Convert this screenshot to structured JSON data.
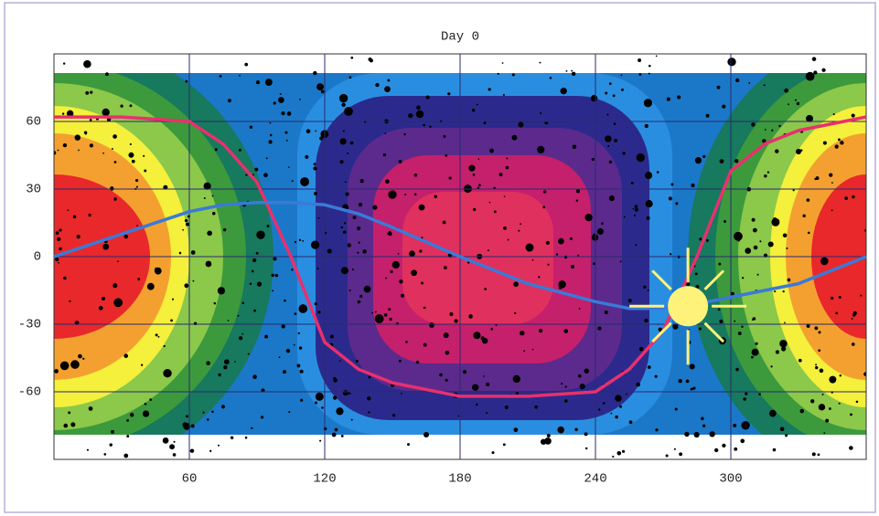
{
  "chart_data": {
    "type": "line",
    "title": "Day 0",
    "x": [
      0,
      30,
      60,
      75,
      90,
      105,
      120,
      135,
      150,
      180,
      210,
      240,
      255,
      270,
      285,
      300,
      315,
      330,
      360
    ],
    "series": [
      {
        "color": "#e8306e",
        "values": [
          62,
          62,
          60,
          50,
          33,
          0,
          -38,
          -50,
          -56,
          -62,
          -62,
          -60,
          -50,
          -33,
          0,
          38,
          50,
          56,
          62
        ]
      },
      {
        "color": "#3a7ad8",
        "values": [
          0,
          10,
          20,
          23,
          24,
          24,
          23,
          19,
          13,
          0,
          -12,
          -20,
          -23,
          -23,
          -21,
          -18,
          -15,
          -12,
          0
        ]
      }
    ],
    "sun": {
      "x": 281,
      "y": -22,
      "color": "#fff27a"
    },
    "xlim": [
      0,
      360
    ],
    "ylim": [
      -90,
      90
    ],
    "xticks": [
      60,
      120,
      180,
      240,
      300
    ],
    "yticks": [
      60,
      30,
      0,
      -30,
      -60
    ],
    "grid": true
  }
}
